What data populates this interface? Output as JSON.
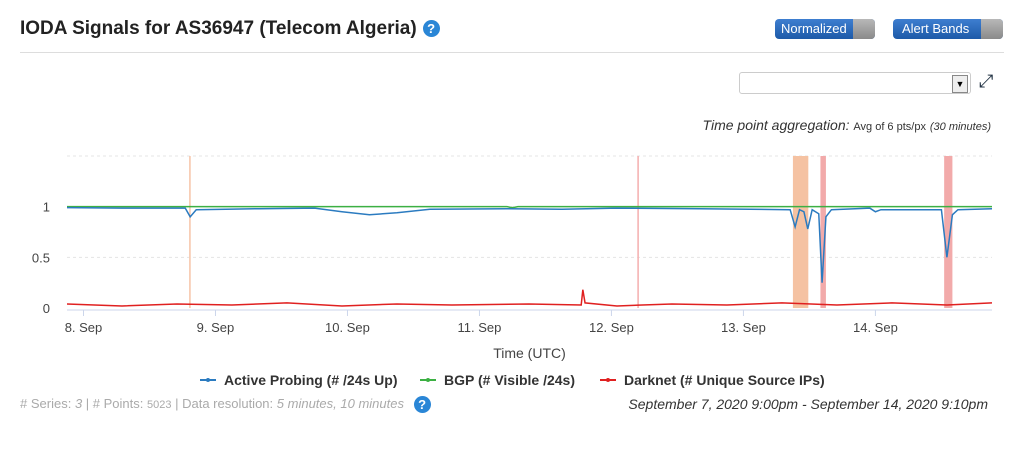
{
  "header": {
    "title": "IODA Signals for AS36947 (Telecom Algeria)",
    "help_icon": "?",
    "normalized_label": "Normalized",
    "alert_bands_label": "Alert Bands"
  },
  "aggregation": {
    "label": "Time point aggregation:",
    "value": "Avg of 6 pts/px",
    "detail": "(30 minutes)"
  },
  "footer": {
    "series_label": "# Series:",
    "series": "3",
    "points_label": "# Points:",
    "points": "5023",
    "resolution_label": "Data resolution:",
    "resolution": "5 minutes, 10 minutes",
    "range": "September 7, 2020 9:00pm - September 14, 2020 9:10pm"
  },
  "chart_data": {
    "type": "line",
    "xlabel": "Time (UTC)",
    "ylabel": "",
    "ylim": [
      0,
      1.5
    ],
    "x_unit": "hours since Sep 7 21:00 UTC",
    "xlim": [
      0,
      168.2
    ],
    "x_ticks": [
      {
        "h": 3,
        "label": "8. Sep"
      },
      {
        "h": 27,
        "label": "9. Sep"
      },
      {
        "h": 51,
        "label": "10. Sep"
      },
      {
        "h": 75,
        "label": "11. Sep"
      },
      {
        "h": 99,
        "label": "12. Sep"
      },
      {
        "h": 123,
        "label": "13. Sep"
      },
      {
        "h": 147,
        "label": "14. Sep"
      }
    ],
    "y_ticks": [
      {
        "v": 0,
        "label": "0"
      },
      {
        "v": 0.5,
        "label": "0.5"
      },
      {
        "v": 1,
        "label": "1"
      },
      {
        "v": 1.5,
        "label": ""
      }
    ],
    "legend_position": "bottom",
    "series": [
      {
        "name": "Active Probing (# /24s Up)",
        "color": "#2b7bc0",
        "points": [
          [
            0,
            0.99
          ],
          [
            10,
            0.985
          ],
          [
            21.5,
            0.985
          ],
          [
            22.4,
            0.9
          ],
          [
            23.5,
            0.97
          ],
          [
            35,
            0.98
          ],
          [
            45,
            0.985
          ],
          [
            50,
            0.95
          ],
          [
            55,
            0.92
          ],
          [
            60,
            0.94
          ],
          [
            66,
            0.975
          ],
          [
            80,
            0.98
          ],
          [
            90,
            0.975
          ],
          [
            100,
            0.985
          ],
          [
            115,
            0.98
          ],
          [
            131.5,
            0.97
          ],
          [
            132.4,
            0.8
          ],
          [
            133.2,
            0.97
          ],
          [
            134,
            0.95
          ],
          [
            134.7,
            0.78
          ],
          [
            135.5,
            0.97
          ],
          [
            136.7,
            0.93
          ],
          [
            137.3,
            0.25
          ],
          [
            138,
            0.9
          ],
          [
            139,
            0.97
          ],
          [
            146,
            0.985
          ],
          [
            147,
            0.95
          ],
          [
            148,
            0.97
          ],
          [
            159,
            0.97
          ],
          [
            160,
            0.5
          ],
          [
            161,
            0.92
          ],
          [
            162,
            0.97
          ],
          [
            168.2,
            0.98
          ]
        ]
      },
      {
        "name": "BGP (# Visible /24s)",
        "color": "#3cb043",
        "points": [
          [
            0,
            1
          ],
          [
            80,
            1
          ],
          [
            81,
            0.99
          ],
          [
            82,
            1
          ],
          [
            168.2,
            1
          ]
        ]
      },
      {
        "name": "Darknet (# Unique Source IPs)",
        "color": "#e02020",
        "points": [
          [
            0,
            0.04
          ],
          [
            10,
            0.02
          ],
          [
            20,
            0.04
          ],
          [
            30,
            0.03
          ],
          [
            40,
            0.05
          ],
          [
            50,
            0.02
          ],
          [
            60,
            0.04
          ],
          [
            70,
            0.03
          ],
          [
            84,
            0.04
          ],
          [
            93.5,
            0.03
          ],
          [
            93.8,
            0.18
          ],
          [
            94.2,
            0.05
          ],
          [
            100,
            0.02
          ],
          [
            110,
            0.04
          ],
          [
            120,
            0.03
          ],
          [
            130,
            0.05
          ],
          [
            140,
            0.03
          ],
          [
            150,
            0.05
          ],
          [
            160,
            0.03
          ],
          [
            168.2,
            0.05
          ]
        ]
      }
    ],
    "alert_bands": [
      {
        "start": 22.2,
        "end": 22.5,
        "color": "#f7c9b0"
      },
      {
        "start": 103.7,
        "end": 104,
        "color": "#f5b5b5"
      },
      {
        "start": 132,
        "end": 134.8,
        "color": "#f5c2a2"
      },
      {
        "start": 137,
        "end": 138,
        "color": "#f2aaaa"
      },
      {
        "start": 159.5,
        "end": 161,
        "color": "#f2aaaa"
      }
    ]
  }
}
